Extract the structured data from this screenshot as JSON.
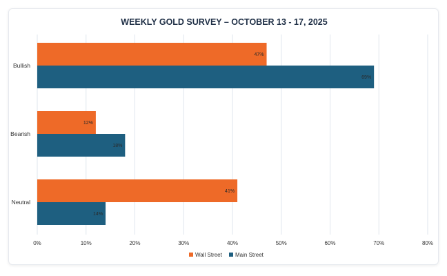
{
  "chart_data": {
    "type": "bar",
    "orientation": "horizontal",
    "title": "WEEKLY GOLD SURVEY – OCTOBER 13 - 17, 2025",
    "categories": [
      "Bullish",
      "Bearish",
      "Neutral"
    ],
    "series": [
      {
        "name": "Wall Street",
        "values": [
          47,
          12,
          41
        ],
        "labels": [
          "47%",
          "12%",
          "41%"
        ],
        "color": "#ee6a28"
      },
      {
        "name": "Main Street",
        "values": [
          69,
          18,
          14
        ],
        "labels": [
          "69%",
          "18%",
          "14%"
        ],
        "color": "#1e5f80"
      }
    ],
    "xlim": [
      0,
      80
    ],
    "xticks": [
      0,
      10,
      20,
      30,
      40,
      50,
      60,
      70,
      80
    ],
    "xtick_labels": [
      "0%",
      "10%",
      "20%",
      "30%",
      "40%",
      "50%",
      "60%",
      "70%",
      "80%"
    ],
    "xlabel": "",
    "ylabel": "",
    "grid": true,
    "legend_position": "bottom-center",
    "colors": {
      "grid": "#dfe6ee",
      "text": "#333333",
      "title": "#1f2f46"
    }
  }
}
